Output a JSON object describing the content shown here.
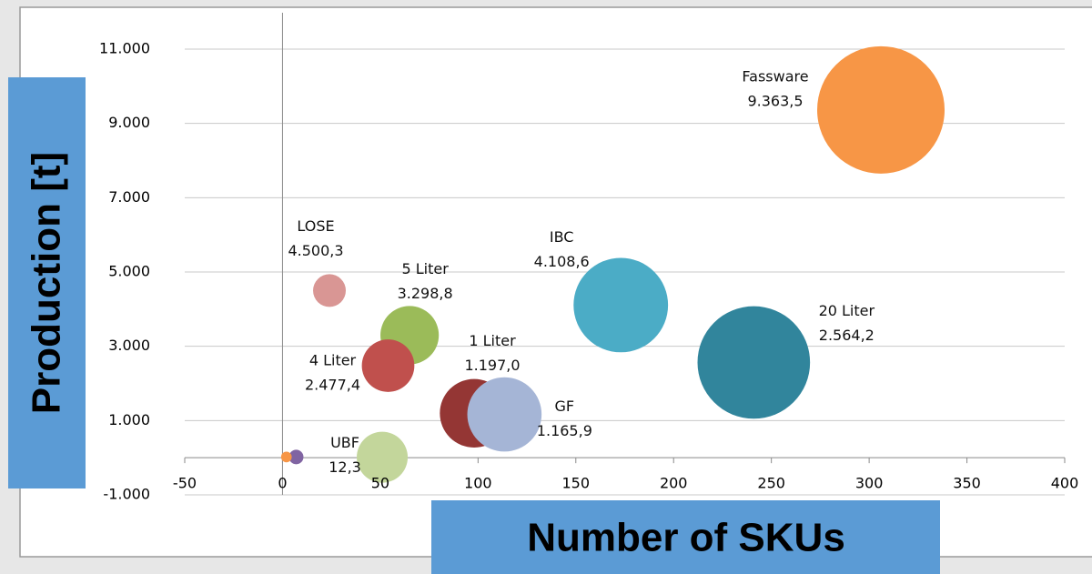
{
  "chart_data": {
    "type": "bubble",
    "x_label": "Number of SKUs",
    "y_label": "Production [t]",
    "xlim": [
      -50,
      400
    ],
    "xticks": [
      -50,
      0,
      50,
      100,
      150,
      200,
      250,
      300,
      350,
      400
    ],
    "ylim": [
      -1000,
      11000
    ],
    "yticks": [
      {
        "value": -1000,
        "label": "-1.000"
      },
      {
        "value": 1000,
        "label": "1.000"
      },
      {
        "value": 3000,
        "label": "3.000"
      },
      {
        "value": 5000,
        "label": "5.000"
      },
      {
        "value": 7000,
        "label": "7.000"
      },
      {
        "value": 9000,
        "label": "9.000"
      },
      {
        "value": 11000,
        "label": "11.000"
      }
    ],
    "grid": true,
    "points": [
      {
        "label": "Fassware",
        "x": 306,
        "y": 9363.5,
        "value_label": "9.363,5",
        "size": 100,
        "color": "#f79646"
      },
      {
        "label": "20 Liter",
        "x": 241,
        "y": 2564.2,
        "value_label": "2.564,2",
        "size": 78,
        "color": "#31859c"
      },
      {
        "label": "IBC",
        "x": 173,
        "y": 4108.6,
        "value_label": "4.108,6",
        "size": 55,
        "color": "#4bacc6"
      },
      {
        "label": "LOSE",
        "x": 24,
        "y": 4500.3,
        "value_label": "4.500,3",
        "size": 6.6,
        "color": "#d99694"
      },
      {
        "label": "5 Liter",
        "x": 65,
        "y": 3298.8,
        "value_label": "3.298,8",
        "size": 21,
        "color": "#9bbb59"
      },
      {
        "label": "4 Liter",
        "x": 54,
        "y": 2477.4,
        "value_label": "2.477,4",
        "size": 17,
        "color": "#c0504d"
      },
      {
        "label": "1 Liter",
        "x": 98,
        "y": 1197.0,
        "value_label": "1.197,0",
        "size": 29,
        "color": "#943634"
      },
      {
        "label": "GF",
        "x": 113.5,
        "y": 1165.9,
        "value_label": "1.165,9",
        "size": 34,
        "color": "#a5b5d6"
      },
      {
        "label": "UBF",
        "x": 51,
        "y": 12.3,
        "value_label": "12,3",
        "size": 16,
        "color": "#c3d69b"
      },
      {
        "x": 7,
        "y": 20,
        "size": 1.3,
        "color": "#8064a2"
      },
      {
        "x": 2,
        "y": 20,
        "size": 0.7,
        "color": "#f79646"
      }
    ]
  }
}
